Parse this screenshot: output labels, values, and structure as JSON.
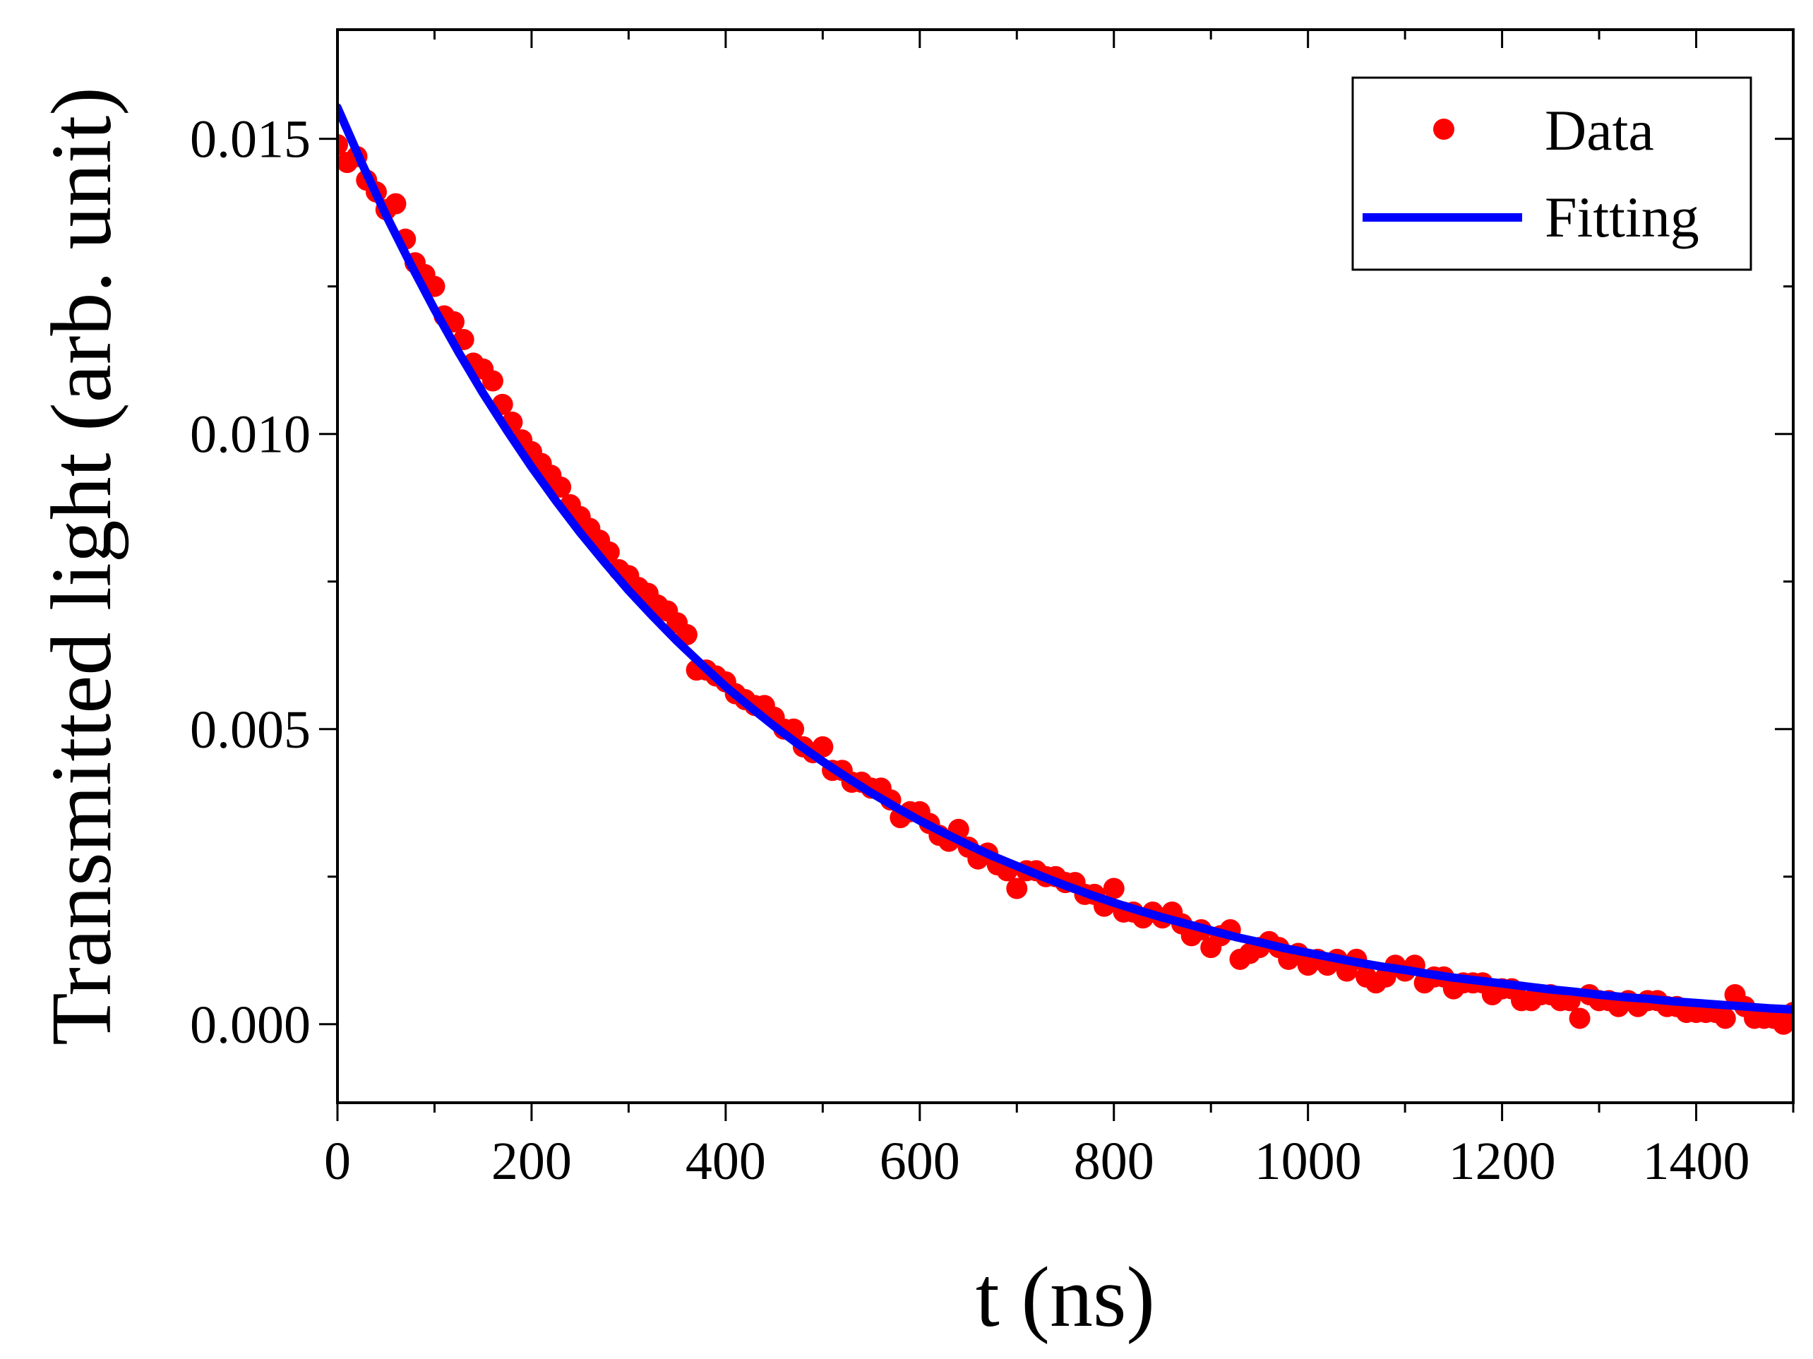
{
  "chart_data": {
    "type": "scatter",
    "title": "",
    "xlabel": "t (ns)",
    "ylabel": "Transmitted light (arb. unit)",
    "xlim": [
      0,
      1500
    ],
    "ylim": [
      -0.00133,
      0.01685
    ],
    "x_ticks": [
      0,
      200,
      400,
      600,
      800,
      1000,
      1200,
      1400
    ],
    "x_tick_labels": [
      "0",
      "200",
      "400",
      "600",
      "800",
      "1000",
      "1200",
      "1400"
    ],
    "x_minor_ticks": [
      100,
      300,
      500,
      700,
      900,
      1100,
      1300,
      1500
    ],
    "y_ticks": [
      0.0,
      0.005,
      0.01,
      0.015
    ],
    "y_tick_labels": [
      "0.000",
      "0.005",
      "0.010",
      "0.015"
    ],
    "y_minor_ticks": [
      0.0025,
      0.0075,
      0.0125
    ],
    "grid": false,
    "legend": {
      "position": "top-right",
      "entries": [
        {
          "label": "Data",
          "marker": "circle",
          "color": "#ff0000"
        },
        {
          "label": "Fitting",
          "marker": "line",
          "color": "#0000ff"
        }
      ]
    },
    "series": [
      {
        "name": "Data",
        "style": "markers",
        "color": "#ff0000",
        "x": [
          0,
          10,
          20,
          30,
          40,
          50,
          60,
          70,
          80,
          90,
          100,
          110,
          120,
          130,
          140,
          150,
          160,
          170,
          180,
          190,
          200,
          210,
          220,
          230,
          240,
          250,
          260,
          270,
          280,
          290,
          300,
          310,
          320,
          330,
          340,
          350,
          360,
          370,
          380,
          390,
          400,
          410,
          420,
          430,
          440,
          450,
          460,
          470,
          480,
          490,
          500,
          510,
          520,
          530,
          540,
          550,
          560,
          570,
          580,
          590,
          600,
          610,
          620,
          630,
          640,
          650,
          660,
          670,
          680,
          690,
          700,
          710,
          720,
          730,
          740,
          750,
          760,
          770,
          780,
          790,
          800,
          810,
          820,
          830,
          840,
          850,
          860,
          870,
          880,
          890,
          900,
          910,
          920,
          930,
          940,
          950,
          960,
          970,
          980,
          990,
          1000,
          1010,
          1020,
          1030,
          1040,
          1050,
          1060,
          1070,
          1080,
          1090,
          1100,
          1110,
          1120,
          1130,
          1140,
          1150,
          1160,
          1170,
          1180,
          1190,
          1200,
          1210,
          1220,
          1230,
          1240,
          1250,
          1260,
          1270,
          1280,
          1290,
          1300,
          1310,
          1320,
          1330,
          1340,
          1350,
          1360,
          1370,
          1380,
          1390,
          1400,
          1410,
          1420,
          1430,
          1440,
          1450,
          1460,
          1470,
          1480,
          1490,
          1500
        ],
        "y": [
          0.0149,
          0.0146,
          0.0147,
          0.0143,
          0.0141,
          0.0138,
          0.0139,
          0.0133,
          0.0129,
          0.0127,
          0.0125,
          0.012,
          0.0119,
          0.0116,
          0.0112,
          0.0111,
          0.0109,
          0.0105,
          0.0102,
          0.0099,
          0.0097,
          0.0095,
          0.0093,
          0.0091,
          0.0088,
          0.0086,
          0.0084,
          0.0082,
          0.008,
          0.0077,
          0.0076,
          0.0074,
          0.0073,
          0.0071,
          0.007,
          0.0068,
          0.0066,
          0.006,
          0.006,
          0.0059,
          0.0058,
          0.0056,
          0.0055,
          0.0054,
          0.0054,
          0.0052,
          0.005,
          0.005,
          0.0047,
          0.0046,
          0.0047,
          0.0043,
          0.0043,
          0.0041,
          0.0041,
          0.004,
          0.004,
          0.0038,
          0.0035,
          0.0036,
          0.0036,
          0.0034,
          0.0032,
          0.0031,
          0.0033,
          0.003,
          0.0028,
          0.0029,
          0.0027,
          0.0026,
          0.0023,
          0.0026,
          0.0026,
          0.0025,
          0.0025,
          0.0024,
          0.0024,
          0.0022,
          0.0022,
          0.002,
          0.0023,
          0.0019,
          0.0019,
          0.0018,
          0.0019,
          0.0018,
          0.0019,
          0.0017,
          0.0015,
          0.0016,
          0.0013,
          0.0015,
          0.0016,
          0.0011,
          0.0012,
          0.0013,
          0.0014,
          0.0013,
          0.0011,
          0.0012,
          0.001,
          0.0011,
          0.001,
          0.0011,
          0.0009,
          0.0011,
          0.0008,
          0.0007,
          0.0008,
          0.001,
          0.0009,
          0.001,
          0.0007,
          0.0008,
          0.0008,
          0.0006,
          0.0007,
          0.0007,
          0.0007,
          0.0005,
          0.0006,
          0.0006,
          0.0004,
          0.0004,
          0.0005,
          0.0005,
          0.0004,
          0.0004,
          0.0001,
          0.0005,
          0.0004,
          0.0004,
          0.0003,
          0.0004,
          0.0003,
          0.0004,
          0.0004,
          0.0003,
          0.0003,
          0.0002,
          0.0002,
          0.0002,
          0.0002,
          0.0001,
          0.0005,
          0.0003,
          0.0001,
          0.0001,
          0.0001,
          0.0,
          0.0002
        ]
      },
      {
        "name": "Fitting",
        "style": "line",
        "color": "#0000ff",
        "x": [
          0,
          25,
          50,
          75,
          100,
          125,
          150,
          175,
          200,
          225,
          250,
          275,
          300,
          325,
          350,
          375,
          400,
          425,
          450,
          475,
          500,
          525,
          550,
          575,
          600,
          625,
          650,
          675,
          700,
          725,
          750,
          775,
          800,
          825,
          850,
          875,
          900,
          925,
          950,
          975,
          1000,
          1025,
          1050,
          1075,
          1100,
          1125,
          1150,
          1175,
          1200,
          1225,
          1250,
          1275,
          1300,
          1325,
          1350,
          1375,
          1400,
          1425,
          1450,
          1475,
          1500
        ],
        "y": [
          0.01553,
          0.01459,
          0.01371,
          0.01289,
          0.01211,
          0.01138,
          0.01069,
          0.01005,
          0.00944,
          0.00887,
          0.00833,
          0.00783,
          0.00735,
          0.00691,
          0.00649,
          0.0061,
          0.00572,
          0.00538,
          0.00505,
          0.00474,
          0.00445,
          0.00418,
          0.00392,
          0.00368,
          0.00345,
          0.00324,
          0.00304,
          0.00285,
          0.00268,
          0.00251,
          0.00235,
          0.0022,
          0.00206,
          0.00193,
          0.00181,
          0.0017,
          0.00159,
          0.00148,
          0.00139,
          0.00129,
          0.00121,
          0.00113,
          0.00105,
          0.00098,
          0.00092,
          0.00085,
          0.00079,
          0.00074,
          0.00069,
          0.00064,
          0.00059,
          0.00055,
          0.0005,
          0.00046,
          0.00043,
          0.00039,
          0.00036,
          0.00033,
          0.0003,
          0.00027,
          0.00025
        ]
      }
    ]
  }
}
